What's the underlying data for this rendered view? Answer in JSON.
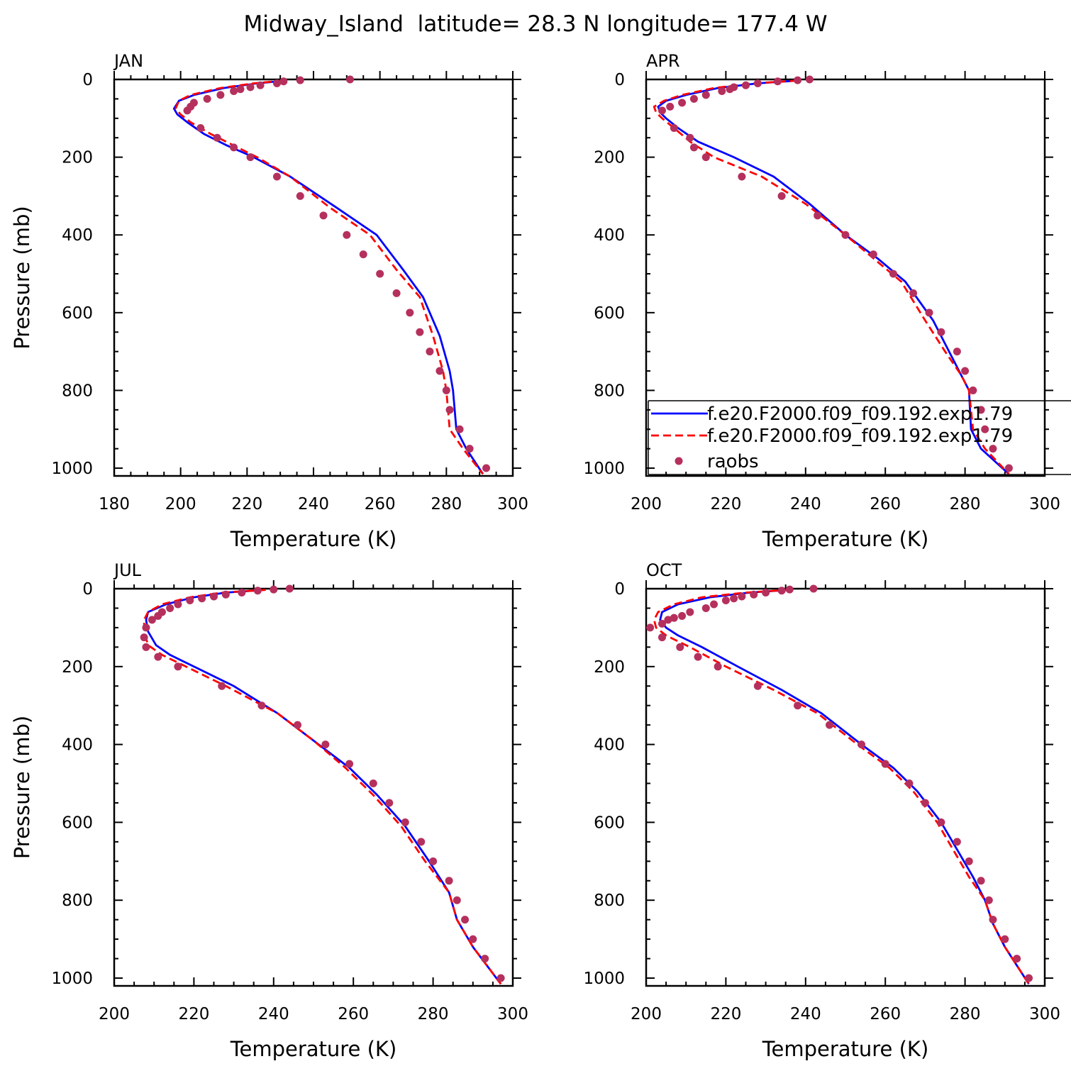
{
  "figure": {
    "title": "Midway_Island  latitude= 28.3 N longitude= 177.4 W",
    "colors": {
      "model1": "#0000ff",
      "model2": "#ff0000",
      "obs": "#b5305d",
      "axis": "#000000"
    }
  },
  "legend": {
    "entries": [
      {
        "label": "f.e20.F2000.f09_f09.192.exp1.79",
        "style": "solid",
        "color": "#0000ff"
      },
      {
        "label": "f.e20.F2000.f09_f09.192.exp1.79",
        "style": "dashed",
        "color": "#ff0000"
      },
      {
        "label": "raobs",
        "style": "marker",
        "color": "#b5305d"
      }
    ]
  },
  "chart_data": [
    {
      "type": "line",
      "panel": "JAN",
      "title": "JAN",
      "xlabel": "Temperature (K)",
      "ylabel": "Pressure (mb)",
      "xlim": [
        180,
        300
      ],
      "ylim": [
        1020,
        0
      ],
      "xticks": [
        "180",
        "200",
        "220",
        "240",
        "260",
        "280",
        "300"
      ],
      "yticks": [
        "0",
        "200",
        "400",
        "600",
        "800",
        "1000"
      ],
      "series": [
        {
          "style": "solid",
          "color": "#0000ff",
          "x": [
            232,
            223,
            213,
            204,
            199.5,
            198,
            199,
            202,
            207,
            214,
            222,
            233,
            247,
            259,
            267,
            273,
            278,
            281,
            282,
            283,
            286,
            291
          ],
          "y": [
            3,
            10,
            22,
            40,
            55,
            75,
            90,
            110,
            140,
            170,
            200,
            250,
            330,
            400,
            490,
            560,
            660,
            750,
            800,
            900,
            950,
            1015
          ]
        },
        {
          "style": "dashed",
          "color": "#ff0000",
          "x": [
            231,
            222,
            212,
            203,
            199.5,
            198.5,
            200,
            203,
            209,
            216,
            223,
            233,
            245,
            257,
            265,
            272,
            276,
            279,
            280,
            281,
            285,
            291
          ],
          "y": [
            3,
            10,
            22,
            40,
            55,
            75,
            90,
            110,
            140,
            170,
            200,
            250,
            330,
            400,
            490,
            560,
            660,
            750,
            800,
            900,
            950,
            1015
          ]
        },
        {
          "style": "markers",
          "color": "#b5305d",
          "x": [
            251,
            236,
            231,
            229,
            224,
            221,
            218,
            216,
            212,
            208,
            204,
            203,
            202,
            206,
            211,
            216,
            221,
            229,
            236,
            243,
            250,
            255,
            260,
            265,
            269,
            272,
            275,
            278,
            280,
            281,
            284,
            287,
            292
          ],
          "y": [
            0,
            2,
            5,
            10,
            15,
            20,
            25,
            30,
            40,
            50,
            60,
            70,
            80,
            125,
            150,
            175,
            200,
            250,
            300,
            350,
            400,
            450,
            500,
            550,
            600,
            650,
            700,
            750,
            800,
            850,
            900,
            950,
            1000
          ]
        }
      ]
    },
    {
      "type": "line",
      "panel": "APR",
      "title": "APR",
      "xlabel": "Temperature (K)",
      "ylabel": "",
      "xlim": [
        200,
        300
      ],
      "ylim": [
        1020,
        0
      ],
      "xticks": [
        "200",
        "220",
        "240",
        "260",
        "280",
        "300"
      ],
      "yticks": [
        "0",
        "200",
        "400",
        "600",
        "800",
        "1000"
      ],
      "series": [
        {
          "style": "solid",
          "color": "#0000ff",
          "x": [
            238,
            228,
            218,
            210,
            205,
            203,
            203.5,
            205,
            208,
            213,
            222,
            232,
            241,
            250,
            258,
            265,
            272,
            276,
            279,
            281,
            281.5,
            284,
            291
          ],
          "y": [
            3,
            10,
            22,
            40,
            55,
            70,
            85,
            100,
            125,
            160,
            200,
            250,
            320,
            400,
            460,
            520,
            620,
            700,
            760,
            800,
            900,
            950,
            1015
          ]
        },
        {
          "style": "dashed",
          "color": "#ff0000",
          "x": [
            238,
            227,
            217,
            209,
            204.5,
            202,
            202.5,
            204,
            207,
            211,
            217,
            229,
            240,
            250,
            257,
            264,
            270,
            275,
            279,
            281,
            282,
            285,
            291
          ],
          "y": [
            3,
            10,
            22,
            40,
            55,
            70,
            85,
            100,
            125,
            160,
            200,
            250,
            320,
            400,
            460,
            520,
            620,
            700,
            760,
            800,
            900,
            950,
            1015
          ]
        },
        {
          "style": "markers",
          "color": "#b5305d",
          "x": [
            241,
            238,
            233,
            228,
            225,
            222,
            221,
            219,
            215,
            212,
            209,
            206,
            204,
            207,
            211,
            212,
            215,
            224,
            234,
            243,
            250,
            257,
            262,
            267,
            271,
            274,
            278,
            280,
            282,
            284,
            285,
            287,
            291
          ],
          "y": [
            0,
            2,
            5,
            10,
            15,
            20,
            25,
            30,
            40,
            50,
            60,
            70,
            80,
            125,
            150,
            175,
            200,
            250,
            300,
            350,
            400,
            450,
            500,
            550,
            600,
            650,
            700,
            750,
            800,
            850,
            900,
            950,
            1000
          ]
        }
      ]
    },
    {
      "type": "line",
      "panel": "JUL",
      "title": "JUL",
      "xlabel": "Temperature (K)",
      "ylabel": "Pressure (mb)",
      "xlim": [
        200,
        300
      ],
      "ylim": [
        1020,
        0
      ],
      "xticks": [
        "200",
        "220",
        "240",
        "260",
        "280",
        "300"
      ],
      "yticks": [
        "0",
        "200",
        "400",
        "600",
        "800",
        "1000"
      ],
      "series": [
        {
          "style": "solid",
          "color": "#0000ff",
          "x": [
            238,
            228,
            220,
            213,
            208.5,
            208,
            208.5,
            210.5,
            214,
            220,
            230,
            241,
            250,
            259,
            266,
            273,
            279,
            284,
            286,
            290,
            297
          ],
          "y": [
            3,
            10,
            22,
            40,
            60,
            80,
            110,
            145,
            170,
            200,
            250,
            320,
            390,
            460,
            530,
            610,
            700,
            780,
            850,
            920,
            1015
          ]
        },
        {
          "style": "dashed",
          "color": "#ff0000",
          "x": [
            238,
            227,
            219,
            212,
            208.5,
            207.5,
            207.5,
            208.5,
            212,
            218,
            228,
            241,
            250,
            258,
            265,
            272,
            278,
            284,
            286,
            290,
            297
          ],
          "y": [
            3,
            10,
            22,
            40,
            60,
            80,
            110,
            145,
            170,
            200,
            250,
            320,
            390,
            460,
            530,
            610,
            700,
            780,
            850,
            920,
            1015
          ]
        },
        {
          "style": "markers",
          "color": "#b5305d",
          "x": [
            244,
            240,
            236,
            232,
            228,
            225,
            222,
            219,
            216,
            214,
            212,
            211,
            209.5,
            208,
            207.5,
            208,
            211,
            216,
            227,
            237,
            246,
            253,
            259,
            265,
            269,
            273,
            277,
            280,
            284,
            286,
            288,
            290,
            293,
            297
          ],
          "y": [
            0,
            2,
            5,
            10,
            15,
            20,
            25,
            30,
            40,
            50,
            60,
            70,
            80,
            100,
            125,
            150,
            175,
            200,
            250,
            300,
            350,
            400,
            450,
            500,
            550,
            600,
            650,
            700,
            750,
            800,
            850,
            900,
            950,
            1000
          ]
        }
      ]
    },
    {
      "type": "line",
      "panel": "OCT",
      "title": "OCT",
      "xlabel": "Temperature (K)",
      "ylabel": "",
      "xlim": [
        200,
        300
      ],
      "ylim": [
        1020,
        0
      ],
      "xticks": [
        "200",
        "220",
        "240",
        "260",
        "280",
        "300"
      ],
      "yticks": [
        "0",
        "200",
        "400",
        "600",
        "800",
        "1000"
      ],
      "series": [
        {
          "style": "solid",
          "color": "#0000ff",
          "x": [
            236,
            226,
            216,
            208,
            204,
            203.5,
            205,
            208,
            214,
            223,
            234,
            244,
            254,
            262,
            268,
            274,
            278,
            282,
            285,
            287,
            290,
            296
          ],
          "y": [
            3,
            10,
            22,
            40,
            60,
            80,
            100,
            120,
            150,
            200,
            260,
            320,
            400,
            460,
            520,
            600,
            670,
            740,
            800,
            860,
            920,
            1015
          ]
        },
        {
          "style": "dashed",
          "color": "#ff0000",
          "x": [
            236,
            225,
            214,
            207,
            203,
            202,
            202.5,
            205,
            211,
            220,
            232,
            243,
            253,
            261,
            267,
            273,
            277,
            281,
            285,
            287,
            290,
            296
          ],
          "y": [
            3,
            10,
            22,
            40,
            60,
            80,
            100,
            120,
            150,
            200,
            260,
            320,
            400,
            460,
            520,
            600,
            670,
            740,
            800,
            860,
            920,
            1015
          ]
        },
        {
          "style": "markers",
          "color": "#b5305d",
          "x": [
            242,
            236,
            234,
            230,
            227,
            224,
            222,
            220,
            217,
            215,
            211,
            209,
            207,
            205.5,
            204,
            201,
            204,
            208.5,
            213,
            218,
            228,
            238,
            246,
            254,
            260,
            266,
            270,
            274,
            278,
            281,
            284,
            286,
            287,
            290,
            293,
            296
          ],
          "y": [
            0,
            2,
            5,
            10,
            15,
            20,
            25,
            30,
            40,
            50,
            60,
            70,
            75,
            80,
            90,
            100,
            125,
            150,
            175,
            200,
            250,
            300,
            350,
            400,
            450,
            500,
            550,
            600,
            650,
            700,
            750,
            800,
            850,
            900,
            950,
            1000
          ]
        }
      ]
    }
  ]
}
